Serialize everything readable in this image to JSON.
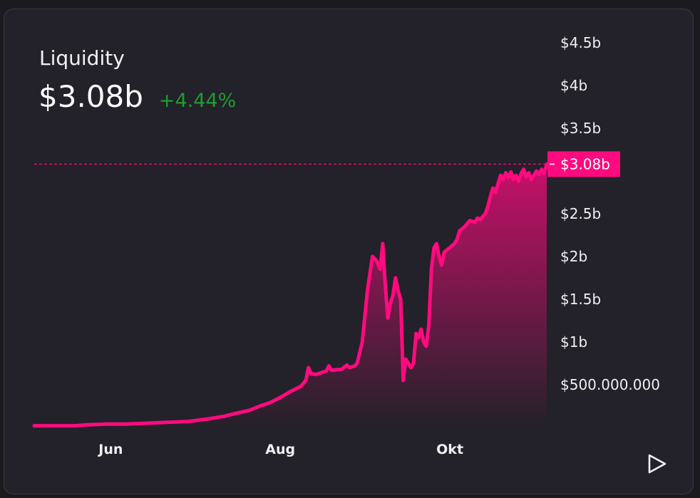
{
  "widget": {
    "title": "Liquidity",
    "value": "$3.08b",
    "change": "+4.44%"
  },
  "colors": {
    "line": "#ff0a7f",
    "change_positive": "#1f9d2e",
    "background": "#232129"
  },
  "controls": {
    "play_icon": "play-icon"
  },
  "chart_data": {
    "type": "area",
    "title": "",
    "xlabel": "",
    "ylabel": "",
    "ylim": [
      0,
      4.5
    ],
    "y_unit": "billion USD",
    "y_axis_position": "right",
    "grid": false,
    "x_range": [
      0,
      1
    ],
    "x_tick_labels": [
      {
        "label": "Jun",
        "x": 0.1493
      },
      {
        "label": "Aug",
        "x": 0.4801
      },
      {
        "label": "Okt",
        "x": 0.811
      }
    ],
    "y_tick_labels": [
      {
        "label": "$500.000.000",
        "y": 0.5
      },
      {
        "label": "$1b",
        "y": 1.0
      },
      {
        "label": "$1.5b",
        "y": 1.5
      },
      {
        "label": "$2b",
        "y": 2.0
      },
      {
        "label": "$2.5b",
        "y": 2.5
      },
      {
        "label": "$3b",
        "y": 3.0
      },
      {
        "label": "$3.5b",
        "y": 3.5
      },
      {
        "label": "$4b",
        "y": 4.0
      },
      {
        "label": "$4.5b",
        "y": 4.5
      }
    ],
    "current": {
      "label": "$3.08b",
      "y": 3.08
    },
    "series": [
      {
        "points": [
          [
            0.0,
            0.02
          ],
          [
            0.04,
            0.02
          ],
          [
            0.08,
            0.02
          ],
          [
            0.1,
            0.03
          ],
          [
            0.14,
            0.04
          ],
          [
            0.18,
            0.04
          ],
          [
            0.22,
            0.05
          ],
          [
            0.26,
            0.06
          ],
          [
            0.3,
            0.07
          ],
          [
            0.34,
            0.1
          ],
          [
            0.37,
            0.13
          ],
          [
            0.39,
            0.16
          ],
          [
            0.42,
            0.2
          ],
          [
            0.44,
            0.25
          ],
          [
            0.46,
            0.29
          ],
          [
            0.48,
            0.35
          ],
          [
            0.5,
            0.42
          ],
          [
            0.52,
            0.48
          ],
          [
            0.53,
            0.55
          ],
          [
            0.535,
            0.7
          ],
          [
            0.54,
            0.63
          ],
          [
            0.55,
            0.62
          ],
          [
            0.57,
            0.66
          ],
          [
            0.575,
            0.72
          ],
          [
            0.58,
            0.67
          ],
          [
            0.6,
            0.68
          ],
          [
            0.61,
            0.73
          ],
          [
            0.615,
            0.7
          ],
          [
            0.625,
            0.72
          ],
          [
            0.63,
            0.75
          ],
          [
            0.64,
            1.0
          ],
          [
            0.65,
            1.6
          ],
          [
            0.66,
            2.0
          ],
          [
            0.668,
            1.95
          ],
          [
            0.675,
            1.85
          ],
          [
            0.68,
            2.15
          ],
          [
            0.684,
            1.75
          ],
          [
            0.69,
            1.28
          ],
          [
            0.695,
            1.45
          ],
          [
            0.7,
            1.55
          ],
          [
            0.705,
            1.75
          ],
          [
            0.71,
            1.6
          ],
          [
            0.715,
            1.5
          ],
          [
            0.72,
            0.55
          ],
          [
            0.725,
            0.8
          ],
          [
            0.73,
            0.75
          ],
          [
            0.735,
            0.7
          ],
          [
            0.74,
            0.75
          ],
          [
            0.745,
            1.1
          ],
          [
            0.75,
            1.05
          ],
          [
            0.755,
            1.15
          ],
          [
            0.76,
            1.0
          ],
          [
            0.765,
            0.95
          ],
          [
            0.77,
            1.2
          ],
          [
            0.775,
            1.85
          ],
          [
            0.78,
            2.1
          ],
          [
            0.785,
            2.15
          ],
          [
            0.79,
            2.0
          ],
          [
            0.795,
            1.9
          ],
          [
            0.8,
            2.05
          ],
          [
            0.81,
            2.1
          ],
          [
            0.82,
            2.15
          ],
          [
            0.825,
            2.2
          ],
          [
            0.83,
            2.3
          ],
          [
            0.84,
            2.35
          ],
          [
            0.85,
            2.42
          ],
          [
            0.86,
            2.4
          ],
          [
            0.865,
            2.45
          ],
          [
            0.87,
            2.43
          ],
          [
            0.88,
            2.5
          ],
          [
            0.885,
            2.58
          ],
          [
            0.89,
            2.7
          ],
          [
            0.895,
            2.8
          ],
          [
            0.9,
            2.75
          ],
          [
            0.905,
            2.85
          ],
          [
            0.91,
            2.95
          ],
          [
            0.915,
            2.9
          ],
          [
            0.92,
            2.98
          ],
          [
            0.925,
            2.92
          ],
          [
            0.93,
            2.99
          ],
          [
            0.935,
            2.9
          ],
          [
            0.94,
            2.95
          ],
          [
            0.945,
            2.88
          ],
          [
            0.95,
            2.97
          ],
          [
            0.955,
            3.02
          ],
          [
            0.96,
            2.93
          ],
          [
            0.965,
            2.98
          ],
          [
            0.97,
            2.9
          ],
          [
            0.975,
            2.95
          ],
          [
            0.98,
            3.0
          ],
          [
            0.985,
            2.96
          ],
          [
            0.99,
            3.02
          ],
          [
            0.995,
            2.97
          ],
          [
            1.0,
            3.08
          ]
        ]
      }
    ]
  }
}
